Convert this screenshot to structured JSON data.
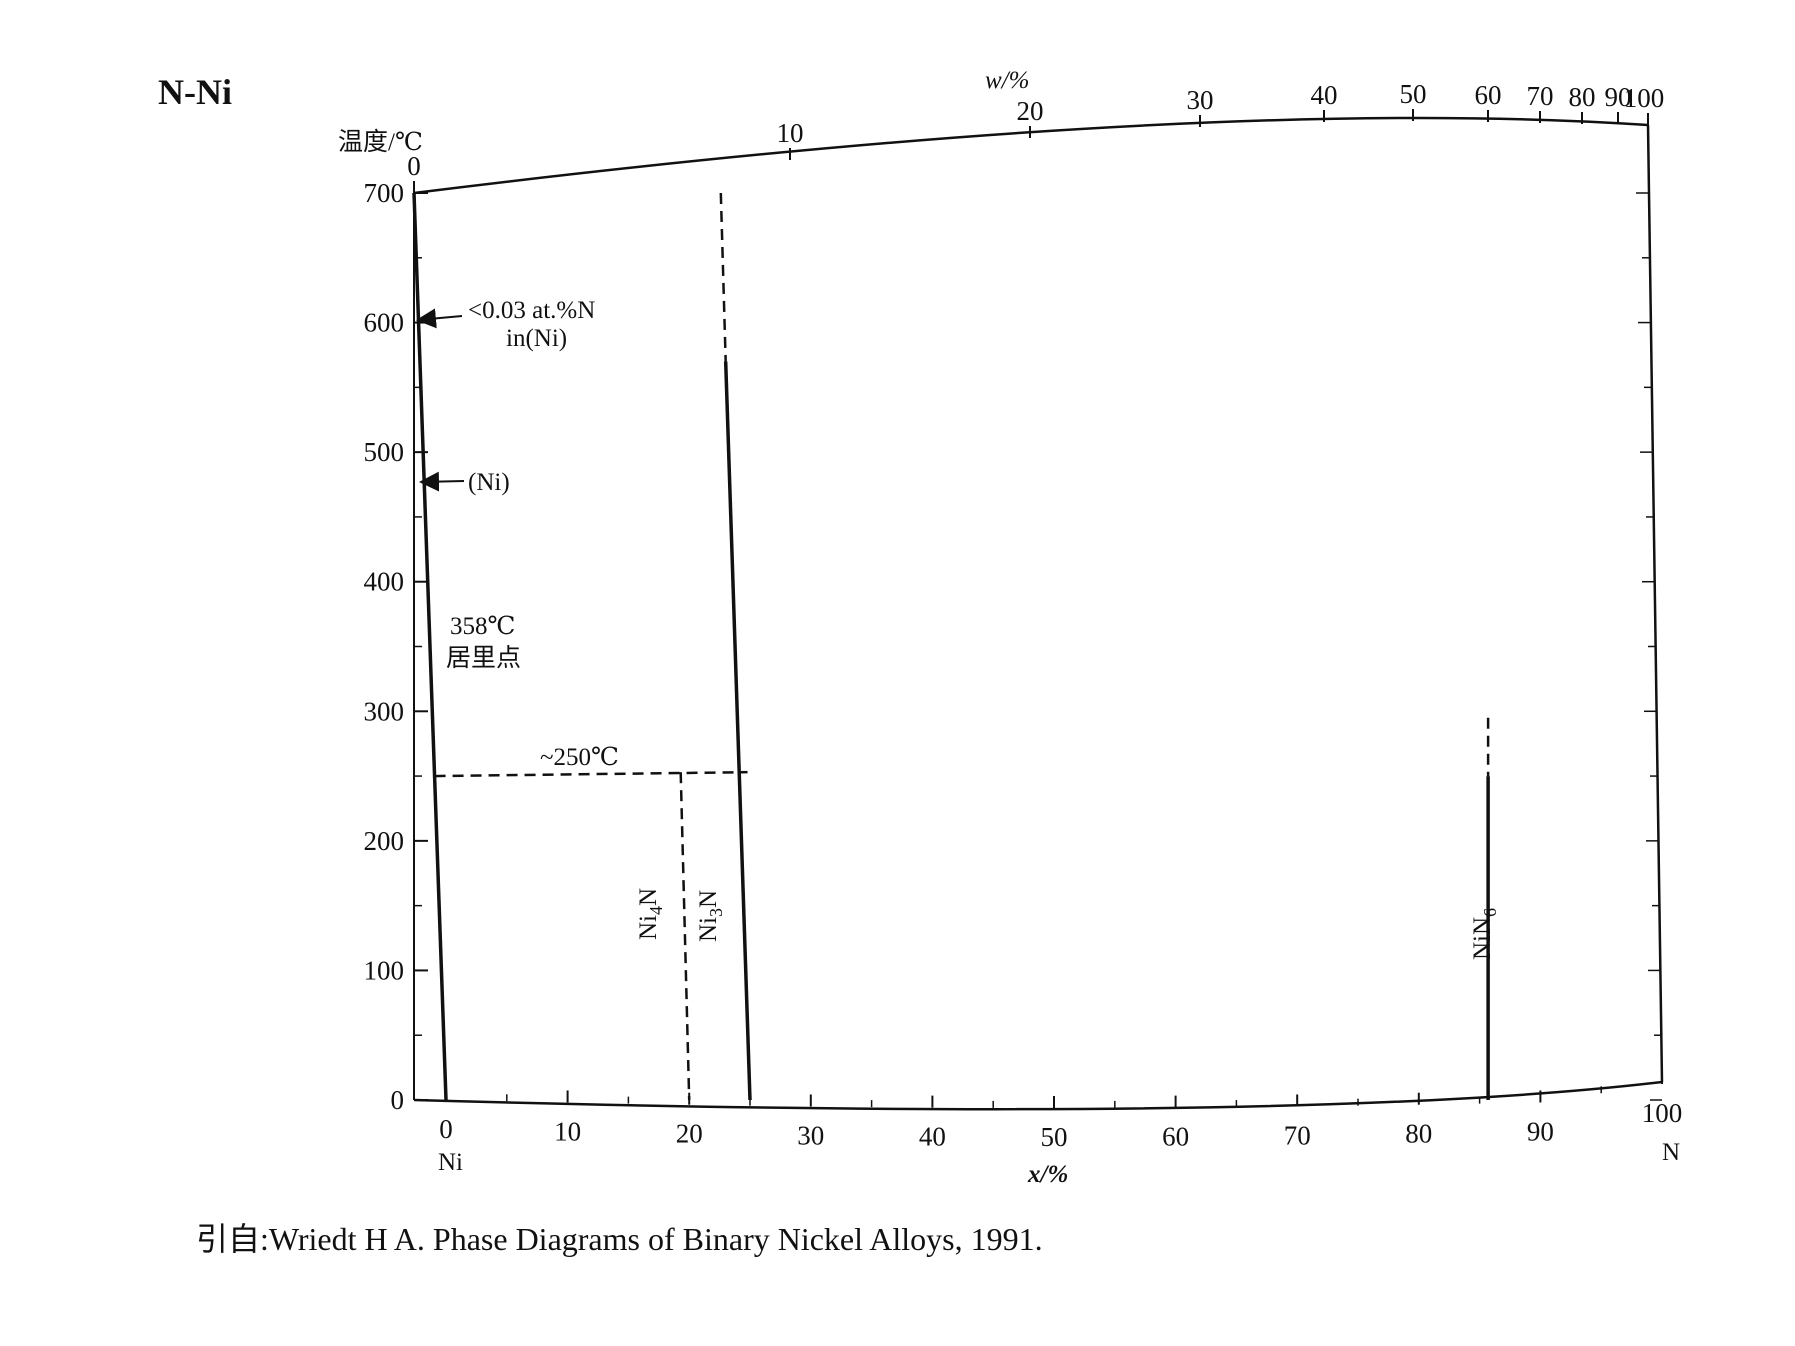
{
  "chart_data": {
    "type": "phase-diagram",
    "title": "N-Ni",
    "ylabel": "温度/℃",
    "xlabel": "x/%",
    "top_axis_label": "w/%",
    "ylim": [
      0,
      700
    ],
    "xlim": [
      0,
      100
    ],
    "yticks": [
      0,
      100,
      200,
      300,
      400,
      500,
      600,
      700
    ],
    "xticks": [
      0,
      10,
      20,
      30,
      40,
      50,
      60,
      70,
      80,
      90,
      100
    ],
    "top_ticks": [
      0,
      10,
      20,
      30,
      40,
      50,
      60,
      70,
      80,
      90,
      100
    ],
    "left_element": "Ni",
    "right_element": "N",
    "solid_lines": [
      {
        "name": "(Ni) solvus",
        "points": [
          [
            0,
            700
          ],
          [
            0,
            0
          ]
        ]
      },
      {
        "name": "Ni3N",
        "points": [
          [
            23,
            570
          ],
          [
            25,
            0
          ]
        ]
      },
      {
        "name": "NiN6",
        "points": [
          [
            85.7,
            250
          ],
          [
            85.7,
            0
          ]
        ]
      }
    ],
    "dashed_lines": [
      {
        "name": "~250℃ isotherm",
        "points": [
          [
            0,
            250
          ],
          [
            24.8,
            253
          ]
        ]
      },
      {
        "name": "Ni4N",
        "points": [
          [
            19.3,
            253
          ],
          [
            20,
            0
          ]
        ]
      },
      {
        "name": "Ni3N upper",
        "points": [
          [
            22.6,
            700
          ],
          [
            23,
            570
          ]
        ]
      },
      {
        "name": "NiN6 upper",
        "points": [
          [
            85.7,
            295
          ],
          [
            85.7,
            250
          ]
        ]
      }
    ],
    "annotations": {
      "solubility_line1": "<0.03 at.%N",
      "solubility_line2": "in(Ni)",
      "ni_phase": "(Ni)",
      "curie_temp": "358℃",
      "curie_name": "居里点",
      "isotherm": "~250℃"
    },
    "phase_labels": [
      {
        "base": "Ni",
        "sub": "4",
        "tail": "N"
      },
      {
        "base": "Ni",
        "sub": "3",
        "tail": "N"
      },
      {
        "base": "NiN",
        "sub": "6",
        "tail": ""
      }
    ],
    "citation": "引自:Wriedt H A. Phase Diagrams of Binary Nickel Alloys, 1991."
  }
}
